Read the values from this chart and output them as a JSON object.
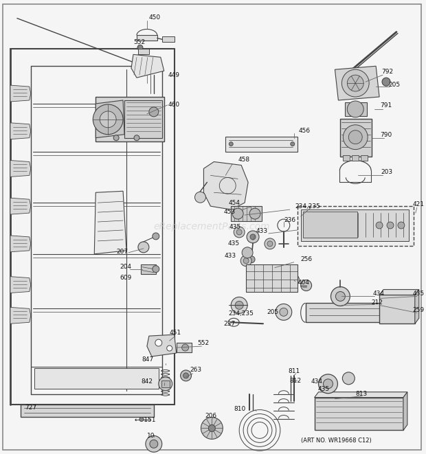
{
  "background_color": "#f5f5f5",
  "line_color": "#444444",
  "text_color": "#111111",
  "watermark": "eReplacementParts.com",
  "art_no": "(ART NO. WR19668 C12)",
  "figsize": [
    6.2,
    6.61
  ],
  "dpi": 100
}
